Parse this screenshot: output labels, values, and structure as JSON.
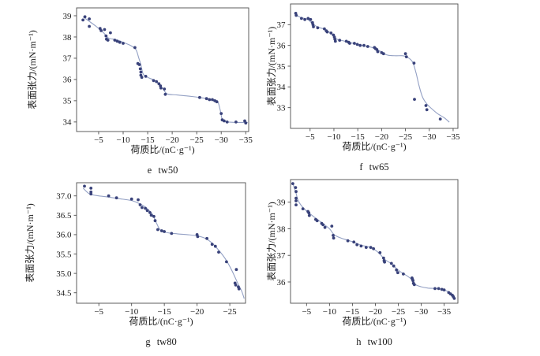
{
  "colors": {
    "point": "#39427a",
    "line": "#93a0c4",
    "axis": "#4d4d4d",
    "text": "#1a1a1a"
  },
  "chart_data": [
    {
      "id": "e",
      "type": "scatter",
      "caption": "e tw50",
      "xlabel": "荷质比/(nC·g⁻¹)",
      "ylabel": "表面张力/(mN·m⁻¹)",
      "grid": false,
      "x_range": [
        -0.5,
        -35.6
      ],
      "y_range": [
        33.55,
        39.37
      ],
      "x_ticks": [
        -5,
        -10,
        -15,
        -20,
        -25,
        -30,
        -35
      ],
      "x_tick_labels": [
        "−5",
        "−10",
        "−15",
        "−20",
        "−25",
        "−30",
        "−35"
      ],
      "y_ticks": [
        34,
        35,
        36,
        37,
        38,
        39
      ],
      "y_tick_labels": [
        "34",
        "35",
        "36",
        "37",
        "38",
        "39"
      ],
      "points": [
        [
          -2.2,
          38.95
        ],
        [
          -1.8,
          38.8
        ],
        [
          -3.1,
          38.85
        ],
        [
          -3.1,
          38.5
        ],
        [
          -5.3,
          38.4
        ],
        [
          -5.5,
          38.3
        ],
        [
          -6.2,
          38.35
        ],
        [
          -7.4,
          38.2
        ],
        [
          -6.5,
          38.05
        ],
        [
          -6.6,
          37.9
        ],
        [
          -6.9,
          37.85
        ],
        [
          -8.3,
          37.85
        ],
        [
          -8.8,
          37.8
        ],
        [
          -9.3,
          37.75
        ],
        [
          -10.0,
          37.7
        ],
        [
          -12.4,
          37.5
        ],
        [
          -13.0,
          36.75
        ],
        [
          -13.3,
          36.7
        ],
        [
          -13.5,
          36.5
        ],
        [
          -13.6,
          36.35
        ],
        [
          -13.6,
          36.2
        ],
        [
          -13.8,
          36.1
        ],
        [
          -14.6,
          36.15
        ],
        [
          -16.2,
          35.95
        ],
        [
          -16.8,
          35.9
        ],
        [
          -17.3,
          35.8
        ],
        [
          -17.6,
          35.7
        ],
        [
          -17.7,
          35.6
        ],
        [
          -18.4,
          35.55
        ],
        [
          -18.6,
          35.3
        ],
        [
          -25.6,
          35.15
        ],
        [
          -27.0,
          35.1
        ],
        [
          -27.6,
          35.05
        ],
        [
          -28.2,
          35.05
        ],
        [
          -28.7,
          35.0
        ],
        [
          -29.1,
          34.95
        ],
        [
          -30.0,
          34.4
        ],
        [
          -30.2,
          34.1
        ],
        [
          -30.6,
          34.05
        ],
        [
          -31.2,
          34.0
        ],
        [
          -33.0,
          34.0
        ],
        [
          -34.8,
          34.05
        ],
        [
          -35.0,
          33.95
        ]
      ],
      "trend_line": [
        [
          -1.8,
          38.95
        ],
        [
          -3.0,
          38.75
        ],
        [
          -4.5,
          38.5
        ],
        [
          -6.0,
          38.2
        ],
        [
          -7.0,
          37.95
        ],
        [
          -8.5,
          37.88
        ],
        [
          -10.0,
          37.75
        ],
        [
          -11.5,
          37.6
        ],
        [
          -12.6,
          37.4
        ],
        [
          -13.2,
          37.0
        ],
        [
          -13.6,
          36.7
        ],
        [
          -14.1,
          36.25
        ],
        [
          -15.0,
          36.1
        ],
        [
          -16.5,
          35.95
        ],
        [
          -17.5,
          35.75
        ],
        [
          -18.3,
          35.5
        ],
        [
          -19.0,
          35.32
        ],
        [
          -21.0,
          35.27
        ],
        [
          -24.0,
          35.2
        ],
        [
          -26.5,
          35.12
        ],
        [
          -28.5,
          35.03
        ],
        [
          -29.3,
          34.95
        ],
        [
          -29.8,
          34.55
        ],
        [
          -30.3,
          34.08
        ],
        [
          -31.5,
          34.0
        ],
        [
          -33.5,
          33.98
        ],
        [
          -35.4,
          33.98
        ]
      ]
    },
    {
      "id": "f",
      "type": "scatter",
      "caption": "f tw65",
      "xlabel": "荷质比/(nC·g⁻¹)",
      "ylabel": "表面张力/(mN·m⁻¹)",
      "grid": false,
      "x_range": [
        -0.9,
        -36.0
      ],
      "y_range": [
        32.0,
        38.0
      ],
      "x_ticks": [
        -5,
        -10,
        -15,
        -20,
        -25,
        -30,
        -35
      ],
      "x_tick_labels": [
        "−5",
        "−10",
        "−15",
        "−20",
        "−25",
        "−30",
        "−35"
      ],
      "y_ticks": [
        33,
        34,
        35,
        36,
        37
      ],
      "y_tick_labels": [
        "33",
        "34",
        "35",
        "36",
        "37"
      ],
      "points": [
        [
          -2.0,
          37.55
        ],
        [
          -2.1,
          37.45
        ],
        [
          -3.2,
          37.3
        ],
        [
          -3.9,
          37.25
        ],
        [
          -4.6,
          37.3
        ],
        [
          -5.1,
          37.25
        ],
        [
          -5.5,
          37.1
        ],
        [
          -5.6,
          37.0
        ],
        [
          -5.7,
          36.9
        ],
        [
          -6.6,
          36.85
        ],
        [
          -8.0,
          36.8
        ],
        [
          -8.4,
          36.7
        ],
        [
          -8.6,
          36.65
        ],
        [
          -9.4,
          36.6
        ],
        [
          -9.9,
          36.5
        ],
        [
          -10.1,
          36.4
        ],
        [
          -10.2,
          36.3
        ],
        [
          -10.3,
          36.2
        ],
        [
          -11.2,
          36.25
        ],
        [
          -12.6,
          36.2
        ],
        [
          -13.1,
          36.15
        ],
        [
          -13.3,
          36.1
        ],
        [
          -14.3,
          36.1
        ],
        [
          -14.9,
          36.05
        ],
        [
          -15.5,
          36.0
        ],
        [
          -16.3,
          36.0
        ],
        [
          -17.1,
          35.95
        ],
        [
          -18.5,
          35.9
        ],
        [
          -18.7,
          35.85
        ],
        [
          -19.0,
          35.8
        ],
        [
          -19.2,
          35.7
        ],
        [
          -20.0,
          35.65
        ],
        [
          -20.4,
          35.6
        ],
        [
          -25.0,
          35.6
        ],
        [
          -25.2,
          35.45
        ],
        [
          -26.8,
          35.15
        ],
        [
          -26.9,
          33.4
        ],
        [
          -29.3,
          33.1
        ],
        [
          -29.5,
          32.9
        ],
        [
          -32.3,
          32.45
        ]
      ],
      "trend_line": [
        [
          -1.9,
          37.5
        ],
        [
          -3.0,
          37.35
        ],
        [
          -4.5,
          37.25
        ],
        [
          -5.5,
          37.05
        ],
        [
          -6.5,
          36.9
        ],
        [
          -8.0,
          36.78
        ],
        [
          -9.0,
          36.65
        ],
        [
          -10.0,
          36.45
        ],
        [
          -10.6,
          36.3
        ],
        [
          -12.0,
          36.22
        ],
        [
          -14.0,
          36.1
        ],
        [
          -16.0,
          36.0
        ],
        [
          -18.0,
          35.9
        ],
        [
          -19.5,
          35.75
        ],
        [
          -20.5,
          35.6
        ],
        [
          -21.5,
          35.52
        ],
        [
          -23.0,
          35.5
        ],
        [
          -24.5,
          35.5
        ],
        [
          -25.5,
          35.42
        ],
        [
          -26.5,
          35.2
        ],
        [
          -27.2,
          34.7
        ],
        [
          -27.8,
          34.1
        ],
        [
          -28.6,
          33.5
        ],
        [
          -29.6,
          33.15
        ],
        [
          -30.5,
          32.95
        ],
        [
          -31.8,
          32.7
        ],
        [
          -33.2,
          32.5
        ],
        [
          -34.2,
          32.3
        ]
      ]
    },
    {
      "id": "g",
      "type": "scatter",
      "caption": "g tw80",
      "xlabel": "荷质比/(nC·g⁻¹)",
      "ylabel": "表面张力/(mN·m⁻¹)",
      "grid": false,
      "x_range": [
        -1.6,
        -27.4
      ],
      "y_range": [
        34.23,
        37.34
      ],
      "x_ticks": [
        -5,
        -10,
        -15,
        -20,
        -25
      ],
      "x_tick_labels": [
        "−5",
        "−10",
        "−15",
        "−20",
        "−25"
      ],
      "y_ticks": [
        34.5,
        35.0,
        35.5,
        36.0,
        36.5,
        37.0
      ],
      "y_tick_labels": [
        "34.5",
        "35.0",
        "35.5",
        "36.0",
        "36.5",
        "37.0"
      ],
      "points": [
        [
          -2.8,
          37.25
        ],
        [
          -3.8,
          37.2
        ],
        [
          -3.8,
          37.1
        ],
        [
          -3.8,
          37.05
        ],
        [
          -6.5,
          37.0
        ],
        [
          -7.7,
          36.95
        ],
        [
          -10.0,
          36.92
        ],
        [
          -11.0,
          36.9
        ],
        [
          -11.3,
          36.77
        ],
        [
          -11.6,
          36.7
        ],
        [
          -12.1,
          36.68
        ],
        [
          -12.4,
          36.62
        ],
        [
          -12.8,
          36.57
        ],
        [
          -13.0,
          36.5
        ],
        [
          -13.4,
          36.47
        ],
        [
          -13.6,
          36.36
        ],
        [
          -14.0,
          36.13
        ],
        [
          -14.6,
          36.1
        ],
        [
          -15.0,
          36.08
        ],
        [
          -16.1,
          36.03
        ],
        [
          -20.0,
          36.0
        ],
        [
          -20.1,
          35.95
        ],
        [
          -21.5,
          35.9
        ],
        [
          -22.3,
          35.75
        ],
        [
          -22.8,
          35.7
        ],
        [
          -23.3,
          35.55
        ],
        [
          -24.5,
          35.3
        ],
        [
          -26.0,
          35.1
        ],
        [
          -25.8,
          34.75
        ],
        [
          -25.9,
          34.7
        ],
        [
          -26.3,
          34.65
        ],
        [
          -26.4,
          34.6
        ]
      ],
      "trend_line": [
        [
          -2.6,
          37.2
        ],
        [
          -3.6,
          37.05
        ],
        [
          -5.0,
          37.0
        ],
        [
          -6.5,
          36.97
        ],
        [
          -8.0,
          36.93
        ],
        [
          -10.0,
          36.88
        ],
        [
          -11.2,
          36.8
        ],
        [
          -12.2,
          36.7
        ],
        [
          -13.2,
          36.52
        ],
        [
          -13.8,
          36.3
        ],
        [
          -14.4,
          36.12
        ],
        [
          -15.5,
          36.05
        ],
        [
          -17.0,
          36.02
        ],
        [
          -18.5,
          36.0
        ],
        [
          -20.0,
          35.97
        ],
        [
          -21.3,
          35.9
        ],
        [
          -22.3,
          35.78
        ],
        [
          -23.3,
          35.6
        ],
        [
          -24.3,
          35.38
        ],
        [
          -25.3,
          35.08
        ],
        [
          -26.2,
          34.75
        ],
        [
          -26.8,
          34.55
        ],
        [
          -27.2,
          34.35
        ]
      ]
    },
    {
      "id": "h",
      "type": "scatter",
      "caption": "h tw100",
      "xlabel": "荷质比/(nC·g⁻¹)",
      "ylabel": "表面张力/(mN·m⁻¹)",
      "grid": false,
      "x_range": [
        -1.5,
        -38.0
      ],
      "y_range": [
        35.2,
        39.85
      ],
      "x_ticks": [
        -5,
        -10,
        -15,
        -20,
        -25,
        -30,
        -35
      ],
      "x_tick_labels": [
        "−5",
        "−10",
        "−15",
        "−20",
        "−25",
        "−30",
        "−35"
      ],
      "y_ticks": [
        36,
        37,
        38,
        39
      ],
      "y_tick_labels": [
        "36",
        "37",
        "38",
        "39"
      ],
      "points": [
        [
          -2.0,
          39.7
        ],
        [
          -2.6,
          39.55
        ],
        [
          -2.7,
          39.4
        ],
        [
          -2.7,
          39.15
        ],
        [
          -2.7,
          39.05
        ],
        [
          -2.7,
          38.9
        ],
        [
          -4.2,
          38.75
        ],
        [
          -5.3,
          38.65
        ],
        [
          -5.5,
          38.6
        ],
        [
          -5.6,
          38.5
        ],
        [
          -7.0,
          38.35
        ],
        [
          -7.3,
          38.3
        ],
        [
          -8.3,
          38.2
        ],
        [
          -8.6,
          38.15
        ],
        [
          -9.0,
          38.05
        ],
        [
          -10.5,
          38.1
        ],
        [
          -10.8,
          37.75
        ],
        [
          -10.9,
          37.65
        ],
        [
          -14.0,
          37.55
        ],
        [
          -15.3,
          37.5
        ],
        [
          -16.0,
          37.4
        ],
        [
          -16.9,
          37.35
        ],
        [
          -18.0,
          37.3
        ],
        [
          -19.0,
          37.3
        ],
        [
          -19.6,
          37.25
        ],
        [
          -21.0,
          37.1
        ],
        [
          -21.8,
          36.9
        ],
        [
          -21.9,
          36.8
        ],
        [
          -22.0,
          36.75
        ],
        [
          -23.5,
          36.7
        ],
        [
          -24.0,
          36.6
        ],
        [
          -24.6,
          36.45
        ],
        [
          -24.9,
          36.35
        ],
        [
          -26.1,
          36.3
        ],
        [
          -28.0,
          36.15
        ],
        [
          -28.1,
          36.1
        ],
        [
          -28.2,
          36.05
        ],
        [
          -28.3,
          35.95
        ],
        [
          -28.5,
          35.9
        ],
        [
          -33.0,
          35.75
        ],
        [
          -33.8,
          35.75
        ],
        [
          -34.5,
          35.72
        ],
        [
          -35.0,
          35.7
        ],
        [
          -36.0,
          35.6
        ],
        [
          -36.4,
          35.55
        ],
        [
          -36.8,
          35.5
        ],
        [
          -37.0,
          35.45
        ],
        [
          -37.2,
          35.38
        ]
      ],
      "trend_line": [
        [
          -1.9,
          39.75
        ],
        [
          -2.6,
          39.4
        ],
        [
          -3.2,
          39.05
        ],
        [
          -4.2,
          38.8
        ],
        [
          -5.5,
          38.6
        ],
        [
          -7.0,
          38.4
        ],
        [
          -8.5,
          38.2
        ],
        [
          -10.0,
          38.0
        ],
        [
          -11.0,
          37.78
        ],
        [
          -12.5,
          37.65
        ],
        [
          -14.0,
          37.57
        ],
        [
          -15.5,
          37.48
        ],
        [
          -17.0,
          37.38
        ],
        [
          -18.5,
          37.32
        ],
        [
          -19.8,
          37.22
        ],
        [
          -21.0,
          37.05
        ],
        [
          -22.0,
          36.85
        ],
        [
          -23.2,
          36.72
        ],
        [
          -24.3,
          36.55
        ],
        [
          -25.5,
          36.38
        ],
        [
          -27.0,
          36.22
        ],
        [
          -28.2,
          36.05
        ],
        [
          -28.8,
          35.9
        ],
        [
          -30.0,
          35.82
        ],
        [
          -31.5,
          35.77
        ],
        [
          -33.5,
          35.75
        ],
        [
          -35.0,
          35.7
        ],
        [
          -36.2,
          35.6
        ],
        [
          -37.3,
          35.4
        ]
      ]
    }
  ]
}
